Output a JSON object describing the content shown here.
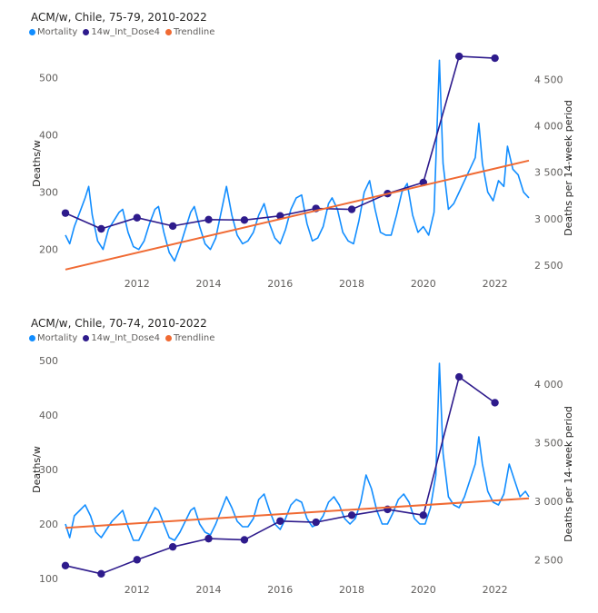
{
  "chart_data": [
    {
      "type": "line",
      "title": "ACM/w, Chile, 75-79, 2010-2022",
      "ylabel": "Deaths/w",
      "y2label": "Deaths per 14-week period",
      "xlim": [
        2010.0,
        2022.95
      ],
      "ylim": [
        160,
        540
      ],
      "y2lim": [
        2420,
        4770
      ],
      "x_ticks": [
        2012,
        2014,
        2016,
        2018,
        2020,
        2022
      ],
      "y_ticks": [
        200,
        300,
        400,
        500
      ],
      "y2_ticks": [
        2500,
        3000,
        3500,
        4000,
        4500
      ],
      "y2_tick_labels": [
        "2 500",
        "3 000",
        "3 500",
        "4 000",
        "4 500"
      ],
      "legend_position": "top-left",
      "legend": [
        "Mortality",
        "14w_Int_Dose4",
        "Trendline"
      ],
      "colors": {
        "mortality": "#118DFF",
        "dose": "#2E1B8C",
        "trend": "#F06A33"
      },
      "series": [
        {
          "name": "Mortality",
          "axis": "left",
          "points": [
            [
              2010.0,
              225
            ],
            [
              2010.12,
              210
            ],
            [
              2010.25,
              240
            ],
            [
              2010.4,
              265
            ],
            [
              2010.55,
              290
            ],
            [
              2010.65,
              310
            ],
            [
              2010.75,
              260
            ],
            [
              2010.9,
              215
            ],
            [
              2011.05,
              200
            ],
            [
              2011.2,
              235
            ],
            [
              2011.35,
              250
            ],
            [
              2011.5,
              265
            ],
            [
              2011.6,
              270
            ],
            [
              2011.75,
              230
            ],
            [
              2011.9,
              205
            ],
            [
              2012.05,
              200
            ],
            [
              2012.2,
              215
            ],
            [
              2012.35,
              245
            ],
            [
              2012.5,
              270
            ],
            [
              2012.6,
              275
            ],
            [
              2012.75,
              230
            ],
            [
              2012.9,
              195
            ],
            [
              2013.05,
              180
            ],
            [
              2013.2,
              205
            ],
            [
              2013.35,
              235
            ],
            [
              2013.5,
              265
            ],
            [
              2013.6,
              275
            ],
            [
              2013.75,
              240
            ],
            [
              2013.9,
              210
            ],
            [
              2014.05,
              200
            ],
            [
              2014.2,
              220
            ],
            [
              2014.4,
              280
            ],
            [
              2014.5,
              310
            ],
            [
              2014.65,
              260
            ],
            [
              2014.8,
              225
            ],
            [
              2014.95,
              210
            ],
            [
              2015.1,
              215
            ],
            [
              2015.25,
              230
            ],
            [
              2015.4,
              260
            ],
            [
              2015.55,
              280
            ],
            [
              2015.7,
              245
            ],
            [
              2015.85,
              220
            ],
            [
              2016.0,
              210
            ],
            [
              2016.15,
              235
            ],
            [
              2016.3,
              270
            ],
            [
              2016.45,
              290
            ],
            [
              2016.6,
              295
            ],
            [
              2016.75,
              245
            ],
            [
              2016.9,
              215
            ],
            [
              2017.05,
              220
            ],
            [
              2017.2,
              240
            ],
            [
              2017.35,
              280
            ],
            [
              2017.45,
              290
            ],
            [
              2017.6,
              270
            ],
            [
              2017.75,
              230
            ],
            [
              2017.9,
              215
            ],
            [
              2018.05,
              210
            ],
            [
              2018.2,
              250
            ],
            [
              2018.35,
              300
            ],
            [
              2018.5,
              320
            ],
            [
              2018.65,
              270
            ],
            [
              2018.8,
              230
            ],
            [
              2018.95,
              225
            ],
            [
              2019.1,
              225
            ],
            [
              2019.25,
              260
            ],
            [
              2019.4,
              300
            ],
            [
              2019.55,
              315
            ],
            [
              2019.7,
              260
            ],
            [
              2019.85,
              230
            ],
            [
              2020.0,
              240
            ],
            [
              2020.15,
              225
            ],
            [
              2020.3,
              265
            ],
            [
              2020.45,
              530
            ],
            [
              2020.55,
              350
            ],
            [
              2020.7,
              270
            ],
            [
              2020.85,
              280
            ],
            [
              2021.0,
              300
            ],
            [
              2021.15,
              320
            ],
            [
              2021.3,
              340
            ],
            [
              2021.45,
              360
            ],
            [
              2021.55,
              420
            ],
            [
              2021.65,
              350
            ],
            [
              2021.8,
              300
            ],
            [
              2021.95,
              285
            ],
            [
              2022.1,
              320
            ],
            [
              2022.25,
              310
            ],
            [
              2022.35,
              380
            ],
            [
              2022.5,
              340
            ],
            [
              2022.65,
              330
            ],
            [
              2022.8,
              300
            ],
            [
              2022.95,
              290
            ]
          ]
        },
        {
          "name": "14w_Int_Dose4",
          "axis": "right",
          "points": [
            [
              2010,
              3060
            ],
            [
              2011,
              2890
            ],
            [
              2012,
              3010
            ],
            [
              2013,
              2920
            ],
            [
              2014,
              2990
            ],
            [
              2015,
              2985
            ],
            [
              2016,
              3030
            ],
            [
              2017,
              3110
            ],
            [
              2018,
              3100
            ],
            [
              2019,
              3270
            ],
            [
              2020,
              3390
            ],
            [
              2021,
              4750
            ],
            [
              2022,
              4730
            ]
          ]
        },
        {
          "name": "Trendline",
          "axis": "left",
          "points": [
            [
              2010.0,
              165
            ],
            [
              2022.95,
              355
            ]
          ]
        }
      ]
    },
    {
      "type": "line",
      "title": "ACM/w, Chile, 70-74, 2010-2022",
      "ylabel": "Deaths/w",
      "y2label": "Deaths per 14-week period",
      "xlim": [
        2010.0,
        2022.95
      ],
      "ylim": [
        100,
        500
      ],
      "y2lim": [
        2340,
        4200
      ],
      "x_ticks": [
        2012,
        2014,
        2016,
        2018,
        2020,
        2022
      ],
      "y_ticks": [
        100,
        200,
        300,
        400,
        500
      ],
      "y2_ticks": [
        2500,
        3000,
        3500,
        4000
      ],
      "y2_tick_labels": [
        "2 500",
        "3 000",
        "3 500",
        "4 000"
      ],
      "legend_position": "top-left",
      "legend": [
        "Mortality",
        "14w_Int_Dose4",
        "Trendline"
      ],
      "colors": {
        "mortality": "#118DFF",
        "dose": "#2E1B8C",
        "trend": "#F06A33"
      },
      "series": [
        {
          "name": "Mortality",
          "axis": "left",
          "points": [
            [
              2010.0,
              200
            ],
            [
              2010.12,
              175
            ],
            [
              2010.25,
              215
            ],
            [
              2010.4,
              225
            ],
            [
              2010.55,
              235
            ],
            [
              2010.7,
              215
            ],
            [
              2010.85,
              185
            ],
            [
              2011.0,
              175
            ],
            [
              2011.15,
              190
            ],
            [
              2011.3,
              205
            ],
            [
              2011.45,
              215
            ],
            [
              2011.6,
              225
            ],
            [
              2011.75,
              195
            ],
            [
              2011.9,
              170
            ],
            [
              2012.05,
              170
            ],
            [
              2012.2,
              190
            ],
            [
              2012.35,
              210
            ],
            [
              2012.5,
              230
            ],
            [
              2012.6,
              225
            ],
            [
              2012.75,
              200
            ],
            [
              2012.9,
              175
            ],
            [
              2013.05,
              170
            ],
            [
              2013.2,
              185
            ],
            [
              2013.35,
              205
            ],
            [
              2013.5,
              225
            ],
            [
              2013.6,
              230
            ],
            [
              2013.75,
              200
            ],
            [
              2013.9,
              185
            ],
            [
              2014.05,
              180
            ],
            [
              2014.2,
              200
            ],
            [
              2014.35,
              225
            ],
            [
              2014.5,
              250
            ],
            [
              2014.65,
              230
            ],
            [
              2014.8,
              205
            ],
            [
              2014.95,
              195
            ],
            [
              2015.1,
              195
            ],
            [
              2015.25,
              210
            ],
            [
              2015.4,
              245
            ],
            [
              2015.55,
              255
            ],
            [
              2015.7,
              225
            ],
            [
              2015.85,
              200
            ],
            [
              2016.0,
              190
            ],
            [
              2016.15,
              210
            ],
            [
              2016.3,
              235
            ],
            [
              2016.45,
              245
            ],
            [
              2016.6,
              240
            ],
            [
              2016.75,
              210
            ],
            [
              2016.9,
              195
            ],
            [
              2017.05,
              200
            ],
            [
              2017.2,
              215
            ],
            [
              2017.35,
              240
            ],
            [
              2017.5,
              250
            ],
            [
              2017.65,
              235
            ],
            [
              2017.8,
              210
            ],
            [
              2017.95,
              200
            ],
            [
              2018.1,
              210
            ],
            [
              2018.25,
              240
            ],
            [
              2018.4,
              290
            ],
            [
              2018.55,
              265
            ],
            [
              2018.7,
              225
            ],
            [
              2018.85,
              200
            ],
            [
              2019.0,
              200
            ],
            [
              2019.15,
              220
            ],
            [
              2019.3,
              245
            ],
            [
              2019.45,
              255
            ],
            [
              2019.6,
              240
            ],
            [
              2019.75,
              210
            ],
            [
              2019.9,
              200
            ],
            [
              2020.05,
              200
            ],
            [
              2020.2,
              230
            ],
            [
              2020.35,
              290
            ],
            [
              2020.45,
              495
            ],
            [
              2020.55,
              330
            ],
            [
              2020.7,
              250
            ],
            [
              2020.85,
              235
            ],
            [
              2021.0,
              230
            ],
            [
              2021.15,
              250
            ],
            [
              2021.3,
              280
            ],
            [
              2021.45,
              310
            ],
            [
              2021.55,
              360
            ],
            [
              2021.65,
              310
            ],
            [
              2021.8,
              260
            ],
            [
              2021.95,
              240
            ],
            [
              2022.1,
              235
            ],
            [
              2022.25,
              255
            ],
            [
              2022.4,
              310
            ],
            [
              2022.55,
              280
            ],
            [
              2022.7,
              250
            ],
            [
              2022.85,
              260
            ],
            [
              2022.95,
              250
            ]
          ]
        },
        {
          "name": "14w_Int_Dose4",
          "axis": "right",
          "points": [
            [
              2010,
              2450
            ],
            [
              2011,
              2380
            ],
            [
              2012,
              2500
            ],
            [
              2013,
              2610
            ],
            [
              2014,
              2680
            ],
            [
              2015,
              2670
            ],
            [
              2016,
              2830
            ],
            [
              2017,
              2820
            ],
            [
              2018,
              2880
            ],
            [
              2019,
              2930
            ],
            [
              2020,
              2880
            ],
            [
              2021,
              4060
            ],
            [
              2022,
              3840
            ]
          ]
        },
        {
          "name": "Trendline",
          "axis": "left",
          "points": [
            [
              2010.0,
              193
            ],
            [
              2022.95,
              247
            ]
          ]
        }
      ]
    }
  ]
}
